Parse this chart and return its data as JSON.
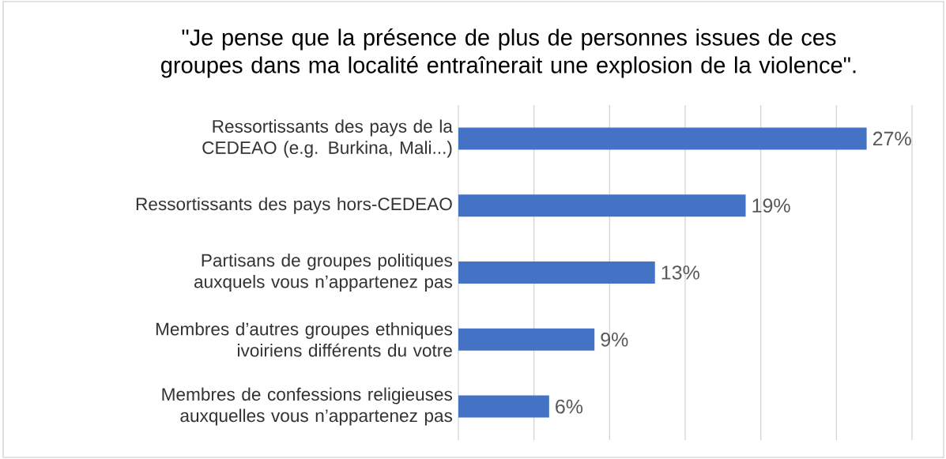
{
  "chart_data": {
    "type": "bar",
    "orientation": "horizontal",
    "title": "\"Je pense que la présence de plus de personnes issues de ces groupes dans ma localité entraînerait une explosion de la violence\".",
    "categories": [
      "Ressortissants des pays de la CEDEAO (e.g. Burkina, Mali...)",
      "Ressortissants des pays hors-CEDEAO",
      "Partisans de groupes politiques auxquels vous n’appartenez pas",
      "Membres d’autres groupes ethniques ivoiriens différents du votre",
      "Membres de confessions religieuses auxquelles vous n’appartenez pas"
    ],
    "values": [
      27,
      19,
      13,
      9,
      6
    ],
    "value_labels": [
      "27%",
      "19%",
      "13%",
      "9%",
      "6%"
    ],
    "color": "#4472c4",
    "xlim": [
      0,
      30
    ],
    "xticks": [
      {
        "value": 0,
        "label": null
      },
      {
        "value": 5,
        "label": null
      },
      {
        "value": 10,
        "label": null
      },
      {
        "value": 15,
        "label": null
      },
      {
        "value": 20,
        "label": null
      },
      {
        "value": 25,
        "label": null
      },
      {
        "value": 30,
        "label": null
      }
    ],
    "grid": "x"
  }
}
